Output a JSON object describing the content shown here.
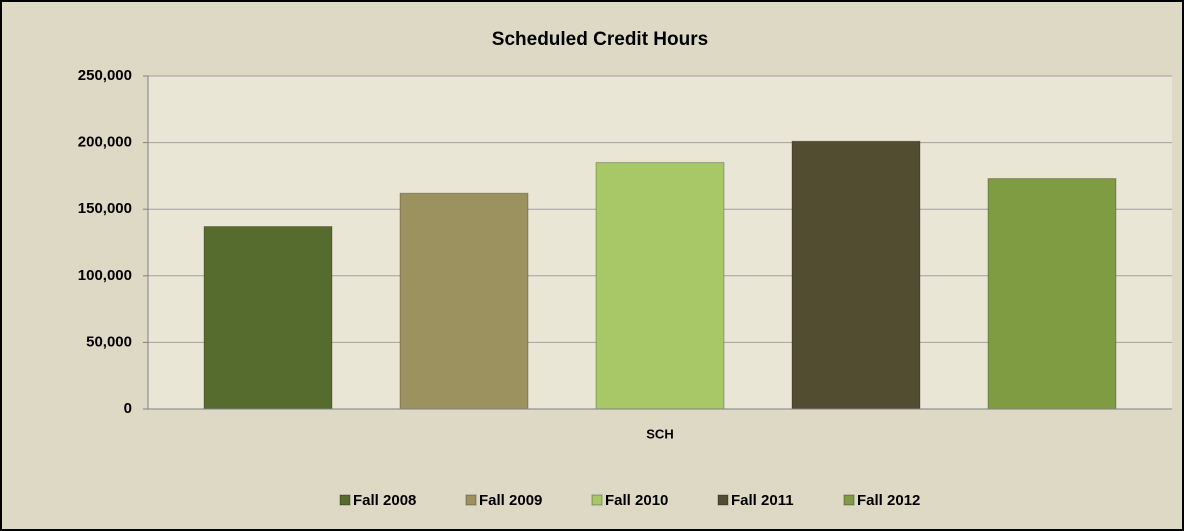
{
  "chart_data": {
    "type": "bar",
    "title": "Scheduled Credit Hours",
    "categories": [
      "SCH"
    ],
    "series": [
      {
        "name": "Fall 2008",
        "color": "#566b2e",
        "values": [
          137000
        ]
      },
      {
        "name": "Fall 2009",
        "color": "#9c9260",
        "values": [
          162000
        ]
      },
      {
        "name": "Fall 2010",
        "color": "#a8c868",
        "values": [
          185000
        ]
      },
      {
        "name": "Fall 2011",
        "color": "#524d30",
        "values": [
          201000
        ]
      },
      {
        "name": "Fall 2012",
        "color": "#7f9c42",
        "values": [
          173000
        ]
      }
    ],
    "ylim": [
      0,
      250000
    ],
    "yticks": [
      0,
      {
        "value": 50000,
        "label": "50,000"
      },
      {
        "value": 100000,
        "label": "100,000"
      },
      {
        "value": 150000,
        "label": "150,000"
      },
      {
        "value": 200000,
        "label": "200,000"
      },
      {
        "value": 250000,
        "label": "250,000"
      }
    ],
    "grid": true,
    "legend": "bottom"
  }
}
